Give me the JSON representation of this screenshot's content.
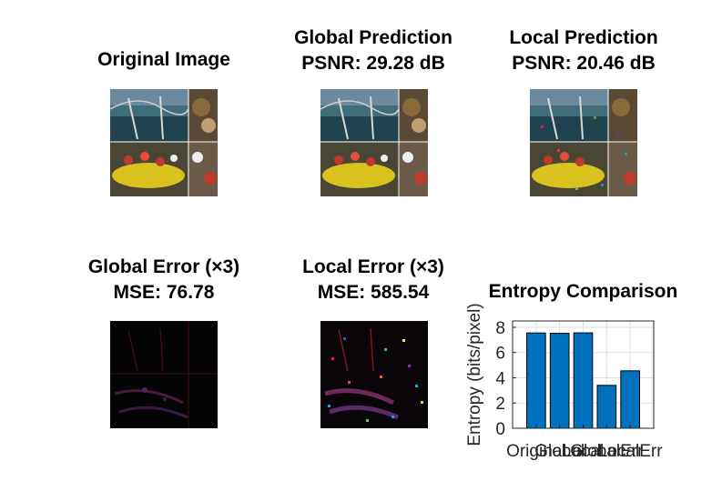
{
  "panels": {
    "original": {
      "title": "Original Image"
    },
    "global_pred": {
      "title": "Global Prediction",
      "subtitle": "PSNR: 29.28 dB"
    },
    "local_pred": {
      "title": "Local Prediction",
      "subtitle": "PSNR: 20.46 dB"
    },
    "global_err": {
      "title": "Global Error (×3)",
      "subtitle": "MSE: 76.78"
    },
    "local_err": {
      "title": "Local Error (×3)",
      "subtitle": "MSE: 585.54"
    }
  },
  "chart_data": {
    "type": "bar",
    "title": "Entropy Comparison",
    "ylabel": "Entropy (bits/pixel)",
    "xlabel": "",
    "categories": [
      "Original",
      "Global",
      "Local",
      "GlobalErr",
      "LocalErr"
    ],
    "values": [
      7.55,
      7.52,
      7.56,
      3.4,
      4.55
    ],
    "yticks": [
      0,
      2,
      4,
      6,
      8
    ],
    "ylim": [
      0,
      8.5
    ],
    "grid": true,
    "bar_color": "#0072bd"
  }
}
